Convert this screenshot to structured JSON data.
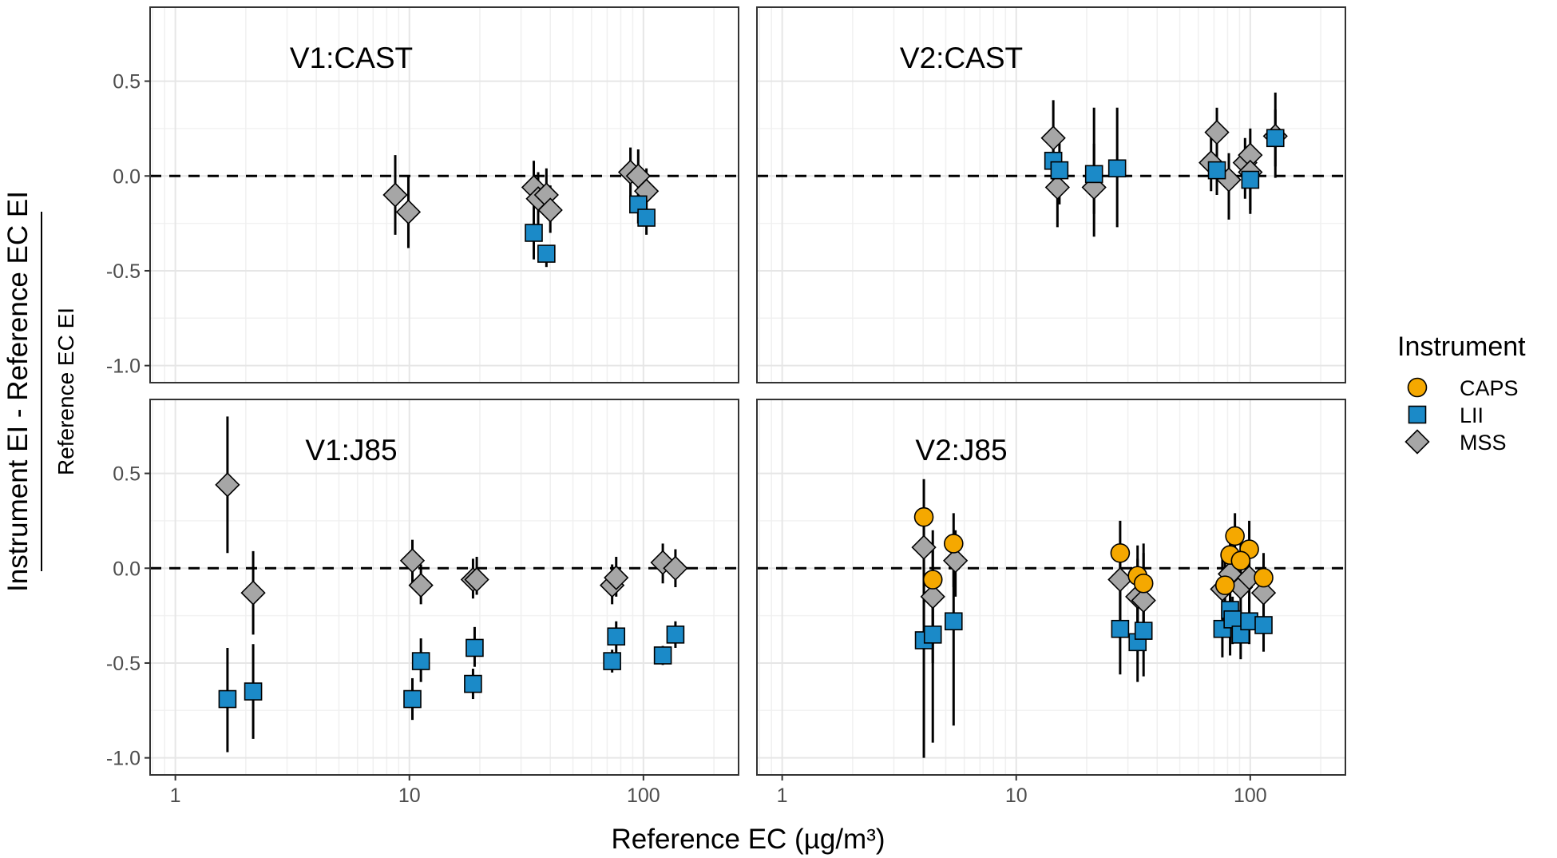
{
  "chart_data": {
    "type": "scatter",
    "xlabel": "Reference EC (µg/m³)",
    "ylabel_numerator": "Instrument EI - Reference EC EI",
    "ylabel_denominator": "Reference EC EI",
    "xscale": "log10",
    "xlim": [
      0.78,
      255
    ],
    "ylim": [
      -1.09,
      0.89
    ],
    "xticks": [
      1,
      10,
      100
    ],
    "xtick_labels": [
      "1",
      "10",
      "100"
    ],
    "yticks": [
      0.5,
      0.0,
      -0.5,
      -1.0
    ],
    "ytick_labels": [
      "0.5",
      "0.0",
      "-0.5",
      "-1.0"
    ],
    "reference_line": 0,
    "grid": true,
    "legend": {
      "title": "Instrument",
      "placement": "right",
      "entries": [
        {
          "name": "CAPS",
          "shape": "circle",
          "color": "#F5A800"
        },
        {
          "name": "LII",
          "shape": "square",
          "color": "#1B8AC8"
        },
        {
          "name": "MSS",
          "shape": "diamond",
          "color": "#A6A6A6"
        }
      ]
    },
    "point_format": "[x, y, err_low, err_high]",
    "panels": [
      {
        "title": "V1:CAST",
        "row": 0,
        "col": 0,
        "series": {
          "CAPS": [],
          "LII": [
            [
              34,
              -0.3,
              -0.44,
              -0.2
            ],
            [
              38.5,
              -0.41,
              -0.48,
              -0.37
            ],
            [
              95,
              -0.15,
              -0.25,
              -0.05
            ],
            [
              103,
              -0.22,
              -0.31,
              -0.12
            ]
          ],
          "MSS": [
            [
              8.7,
              -0.1,
              -0.31,
              0.11
            ],
            [
              9.9,
              -0.19,
              -0.38,
              0.0
            ],
            [
              34,
              -0.06,
              -0.25,
              0.08
            ],
            [
              35.5,
              -0.12,
              -0.28,
              0.02
            ],
            [
              38.5,
              -0.1,
              -0.22,
              0.04
            ],
            [
              40,
              -0.18,
              -0.3,
              -0.05
            ],
            [
              88,
              0.02,
              -0.12,
              0.15
            ],
            [
              95,
              0.0,
              -0.13,
              0.14
            ],
            [
              103,
              -0.08,
              -0.2,
              0.04
            ]
          ]
        }
      },
      {
        "title": "V2:CAST",
        "row": 0,
        "col": 1,
        "series": {
          "CAPS": [],
          "LII": [
            [
              14.4,
              0.08,
              -0.1,
              0.26
            ],
            [
              15.3,
              0.03,
              -0.15,
              0.2
            ],
            [
              21.5,
              0.01,
              -0.2,
              0.36
            ],
            [
              27,
              0.04,
              -0.27,
              0.36
            ],
            [
              72,
              0.03,
              -0.1,
              0.18
            ],
            [
              100,
              -0.02,
              -0.18,
              0.1
            ],
            [
              128,
              0.2,
              0.05,
              0.35
            ]
          ],
          "MSS": [
            [
              14.4,
              0.2,
              -0.04,
              0.4
            ],
            [
              15,
              -0.06,
              -0.27,
              0.12
            ],
            [
              21.5,
              -0.06,
              -0.32,
              0.17
            ],
            [
              68,
              0.07,
              -0.08,
              0.2
            ],
            [
              72,
              0.23,
              0.1,
              0.36
            ],
            [
              81,
              -0.02,
              -0.23,
              0.12
            ],
            [
              95,
              0.07,
              -0.12,
              0.2
            ],
            [
              100,
              0.11,
              -0.05,
              0.25
            ],
            [
              100,
              0.02,
              -0.2,
              0.15
            ],
            [
              128,
              0.21,
              -0.01,
              0.44
            ]
          ]
        }
      },
      {
        "title": "V1:J85",
        "row": 1,
        "col": 0,
        "series": {
          "CAPS": [],
          "LII": [
            [
              1.67,
              -0.69,
              -0.97,
              -0.42
            ],
            [
              2.15,
              -0.65,
              -0.9,
              -0.4
            ],
            [
              10.3,
              -0.69,
              -0.8,
              -0.58
            ],
            [
              11.2,
              -0.49,
              -0.6,
              -0.37
            ],
            [
              18.7,
              -0.61,
              -0.69,
              -0.53
            ],
            [
              19,
              -0.42,
              -0.52,
              -0.31
            ],
            [
              73.5,
              -0.49,
              -0.55,
              -0.43
            ],
            [
              76.5,
              -0.36,
              -0.45,
              -0.28
            ],
            [
              121,
              -0.46,
              -0.51,
              -0.41
            ],
            [
              137,
              -0.35,
              -0.42,
              -0.28
            ]
          ],
          "MSS": [
            [
              1.67,
              0.44,
              0.08,
              0.8
            ],
            [
              2.15,
              -0.13,
              -0.35,
              0.09
            ],
            [
              10.3,
              0.04,
              -0.08,
              0.15
            ],
            [
              11.2,
              -0.09,
              -0.19,
              0.02
            ],
            [
              18.7,
              -0.06,
              -0.16,
              0.05
            ],
            [
              19.4,
              -0.06,
              -0.14,
              0.06
            ],
            [
              73.5,
              -0.09,
              -0.19,
              0.02
            ],
            [
              76.5,
              -0.05,
              -0.15,
              0.06
            ],
            [
              121,
              0.03,
              -0.08,
              0.13
            ],
            [
              137,
              0.0,
              -0.1,
              0.1
            ]
          ]
        }
      },
      {
        "title": "V2:J85",
        "row": 1,
        "col": 1,
        "series": {
          "CAPS": [
            [
              4.03,
              0.27,
              0.05,
              0.47
            ],
            [
              4.4,
              -0.06,
              -0.4,
              0.2
            ],
            [
              5.4,
              0.13,
              -0.1,
              0.29
            ],
            [
              27.8,
              0.08,
              -0.1,
              0.25
            ],
            [
              33,
              -0.04,
              -0.3,
              0.12
            ],
            [
              35,
              -0.08,
              -0.32,
              0.13
            ],
            [
              86,
              0.17,
              0.0,
              0.29
            ],
            [
              82,
              0.07,
              -0.1,
              0.2
            ],
            [
              99,
              0.1,
              -0.05,
              0.25
            ],
            [
              91,
              0.04,
              -0.1,
              0.18
            ],
            [
              114,
              -0.05,
              -0.2,
              0.08
            ],
            [
              78,
              -0.09,
              -0.25,
              0.05
            ]
          ],
          "MSS": [
            [
              4.03,
              0.11,
              -0.3,
              0.3
            ],
            [
              4.4,
              -0.15,
              -0.5,
              0.1
            ],
            [
              5.5,
              0.04,
              -0.15,
              0.2
            ],
            [
              27.8,
              -0.06,
              -0.3,
              0.1
            ],
            [
              33,
              -0.15,
              -0.4,
              0.05
            ],
            [
              35,
              -0.17,
              -0.4,
              0.08
            ],
            [
              76,
              -0.11,
              -0.3,
              0.05
            ],
            [
              82,
              -0.03,
              -0.2,
              0.12
            ],
            [
              91,
              -0.1,
              -0.3,
              0.06
            ],
            [
              99,
              -0.05,
              -0.22,
              0.1
            ],
            [
              114,
              -0.13,
              -0.3,
              0.04
            ]
          ],
          "LII": [
            [
              4.03,
              -0.38,
              -1.0,
              0.05
            ],
            [
              4.4,
              -0.35,
              -0.92,
              0.0
            ],
            [
              5.4,
              -0.28,
              -0.83,
              0.05
            ],
            [
              27.8,
              -0.32,
              -0.56,
              -0.1
            ],
            [
              33,
              -0.39,
              -0.6,
              -0.2
            ],
            [
              35,
              -0.33,
              -0.57,
              -0.15
            ],
            [
              76,
              -0.32,
              -0.47,
              -0.2
            ],
            [
              82,
              -0.22,
              -0.46,
              -0.1
            ],
            [
              84,
              -0.27,
              -0.4,
              -0.15
            ],
            [
              91,
              -0.35,
              -0.48,
              -0.22
            ],
            [
              99,
              -0.28,
              -0.4,
              -0.15
            ],
            [
              114,
              -0.3,
              -0.44,
              -0.18
            ]
          ]
        }
      }
    ]
  }
}
